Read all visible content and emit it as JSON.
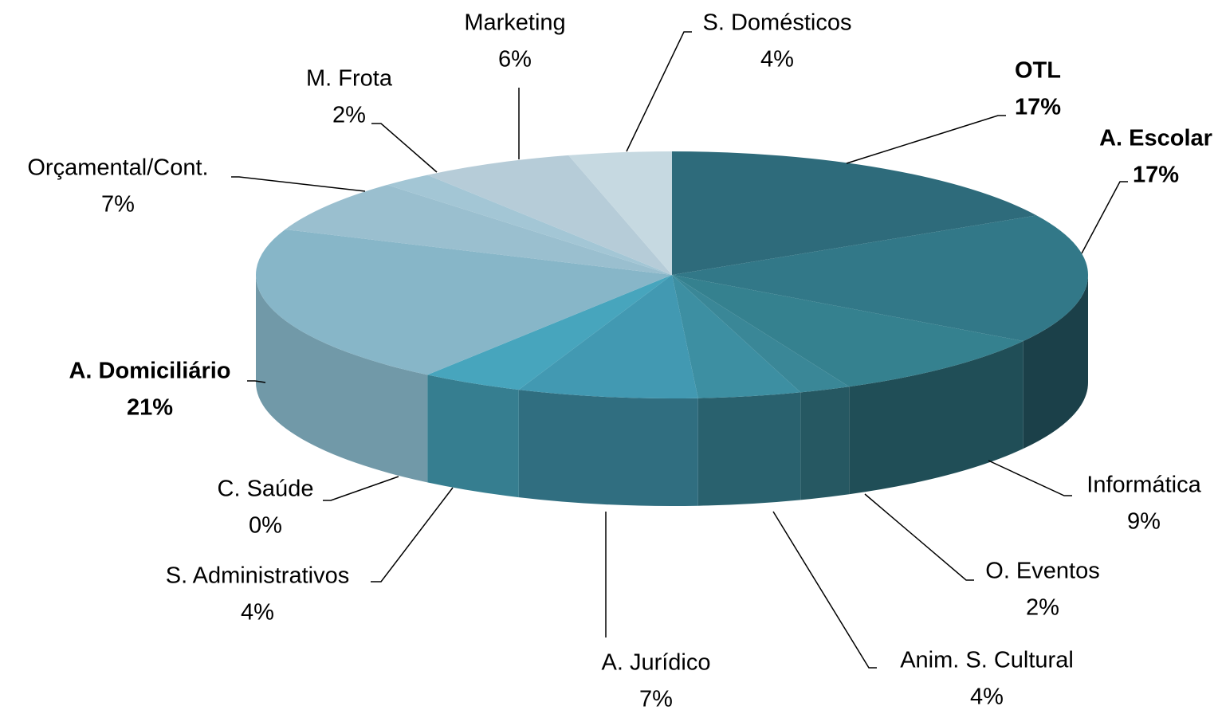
{
  "chart_data": {
    "type": "pie3d",
    "categories": [
      "OTL",
      "A. Escolar",
      "Informática",
      "O. Eventos",
      "Anim. S. Cultural",
      "A. Jurídico",
      "S. Administrativos",
      "C. Saúde",
      "A. Domiciliário",
      "Orçamental/Cont.",
      "M. Frota",
      "Marketing",
      "S. Domésticos"
    ],
    "values": [
      17,
      17,
      9,
      2,
      4,
      7,
      4,
      0,
      21,
      7,
      2,
      6,
      4
    ],
    "value_labels": [
      "17%",
      "17%",
      "9%",
      "2%",
      "4%",
      "7%",
      "4%",
      "0%",
      "21%",
      "7%",
      "2%",
      "6%",
      "4%"
    ],
    "colors": [
      "#2e6b7b",
      "#327888",
      "#35818f",
      "#3a8797",
      "#3d8fa2",
      "#4299b2",
      "#47a5bd",
      "#5ab0c6",
      "#87b6c8",
      "#9abfcf",
      "#a3c6d5",
      "#b6ccd8",
      "#c6d9e1"
    ],
    "bold": [
      true,
      true,
      false,
      false,
      false,
      false,
      false,
      false,
      true,
      false,
      false,
      false,
      false
    ]
  }
}
